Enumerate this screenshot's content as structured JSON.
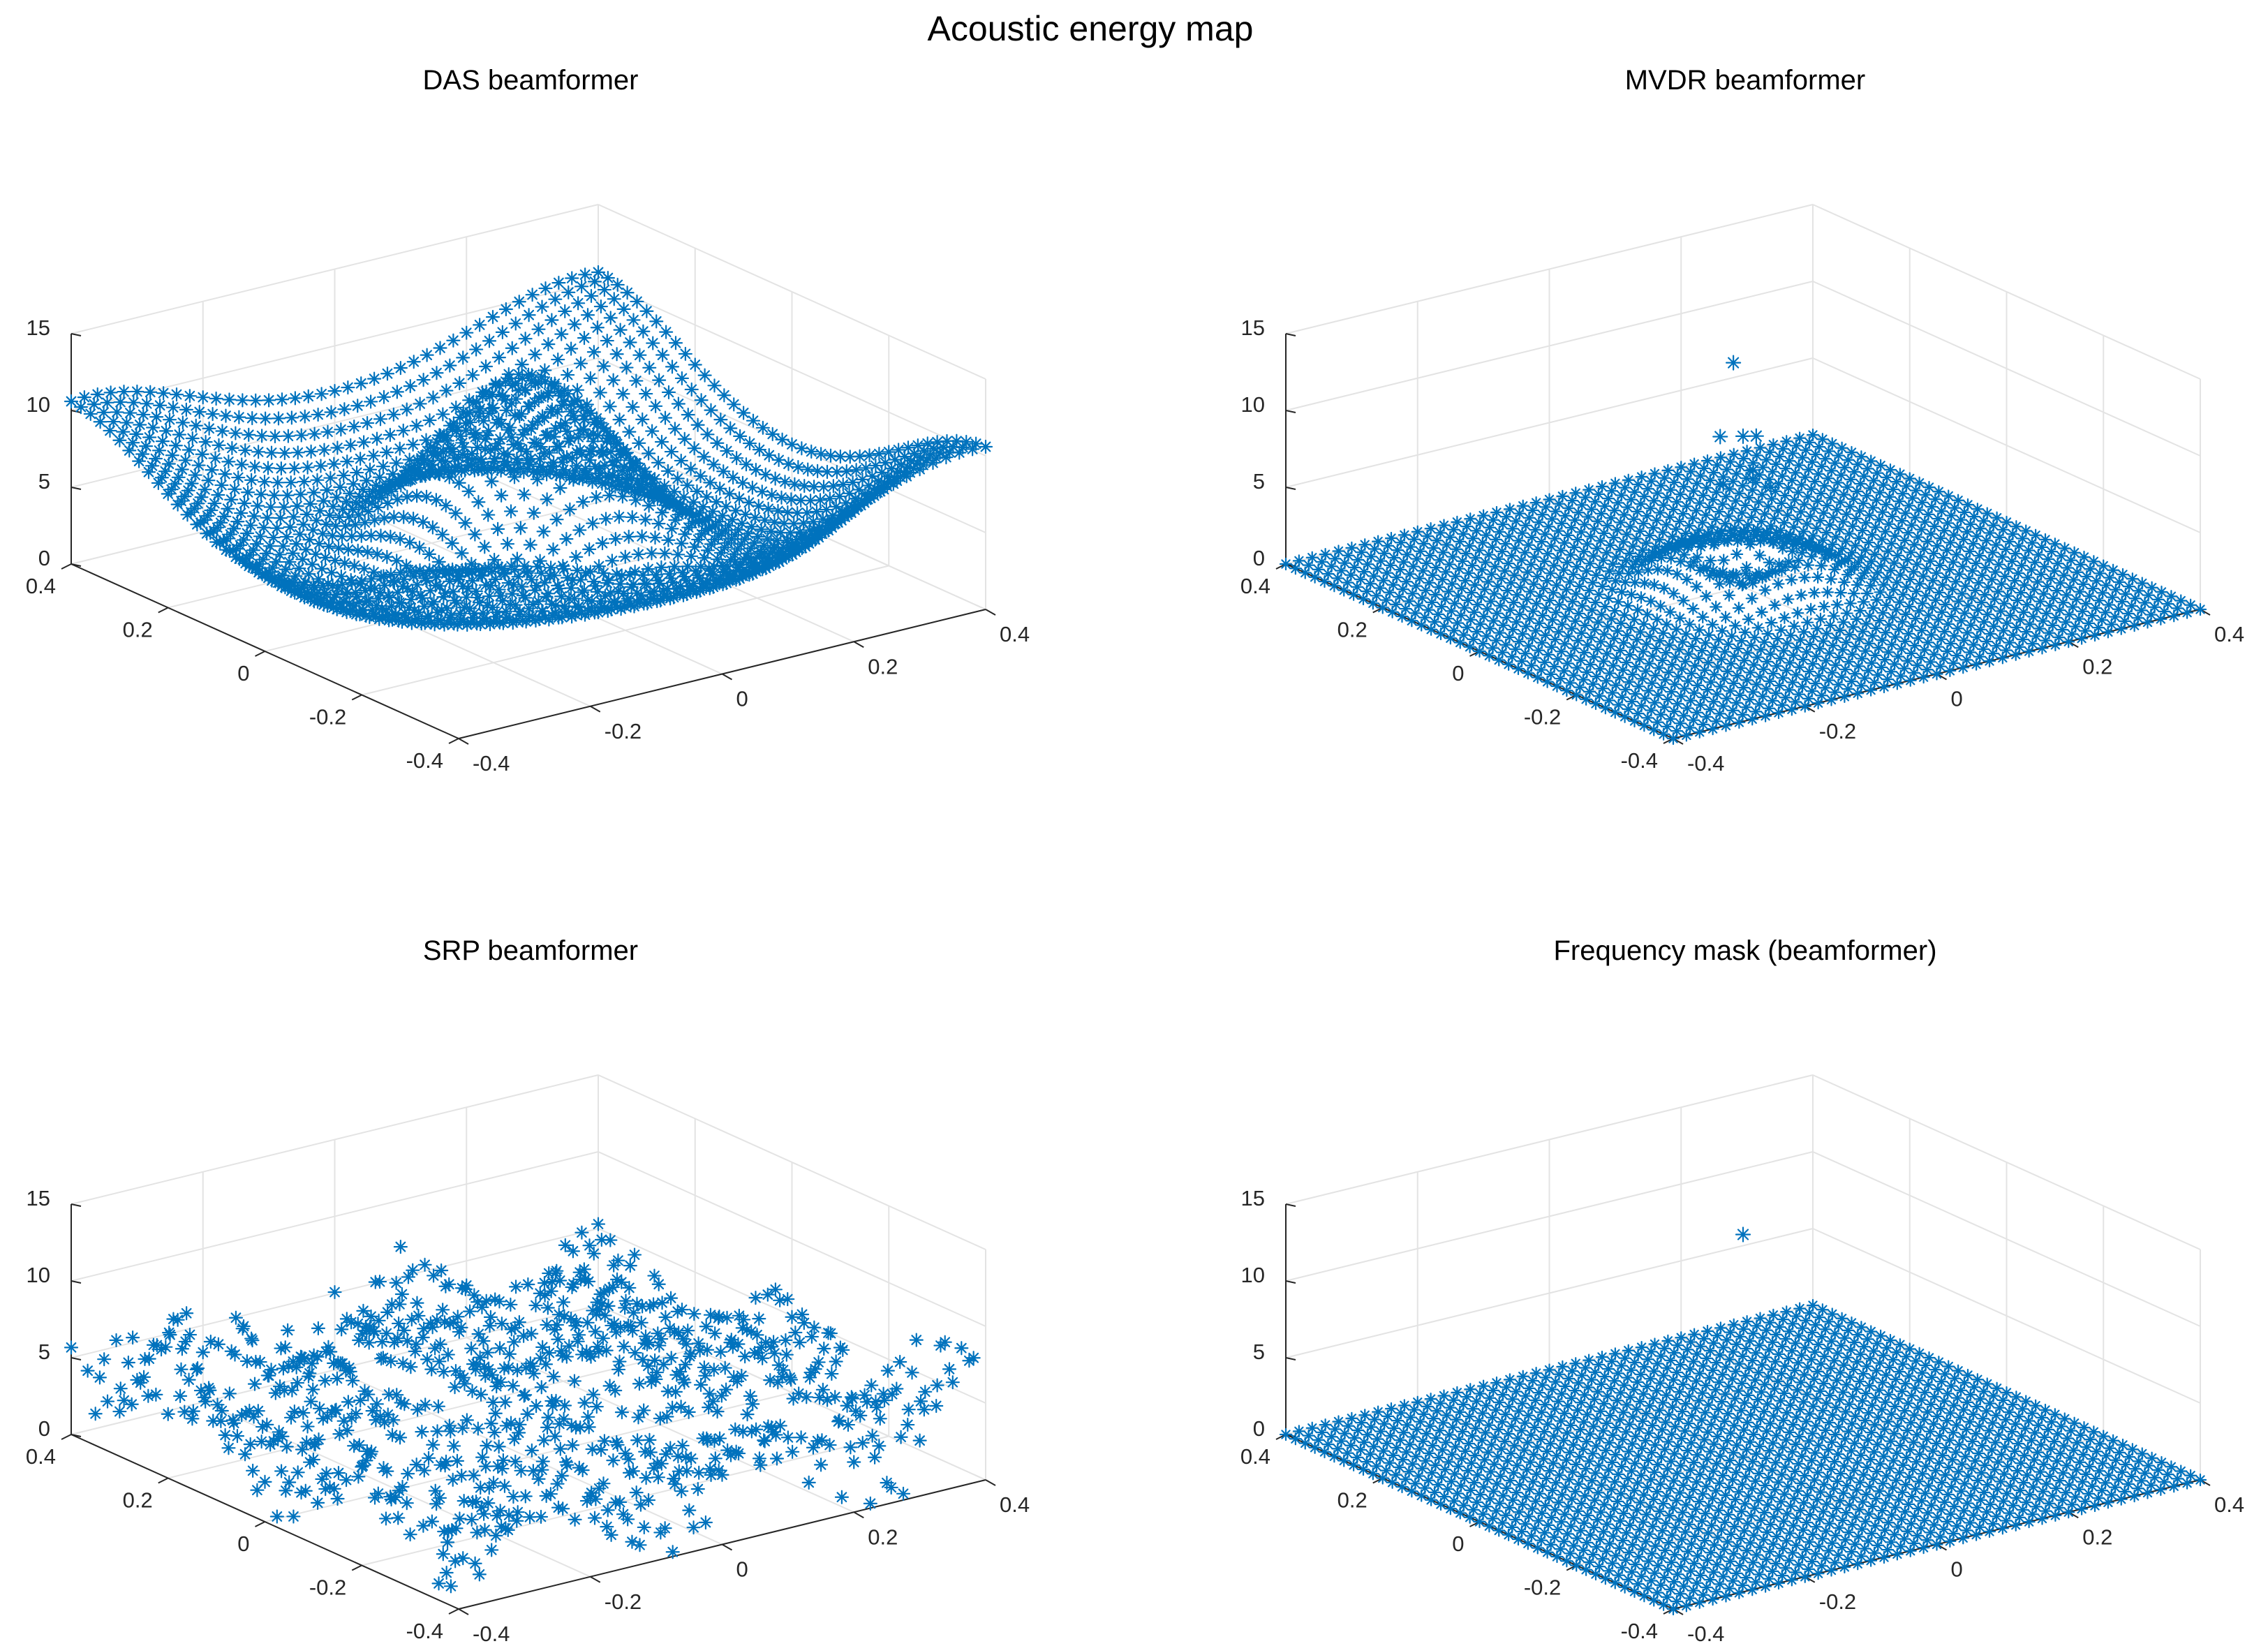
{
  "figure": {
    "title": "Acoustic energy map"
  },
  "colors": {
    "marker": "#0072BD",
    "grid": "#e3e3e3",
    "axis": "#262626",
    "text": "#000000"
  },
  "chart_data": [
    {
      "id": "das",
      "type": "scatter",
      "marker": "asterisk",
      "title": "DAS beamformer",
      "surface": "sinc-like ring with central ridge",
      "x_range": [
        -0.4,
        0.4
      ],
      "y_range": [
        -0.4,
        0.4
      ],
      "zlim": [
        0,
        15
      ],
      "x_ticks": [
        "-0.4",
        "-0.2",
        "0",
        "0.2",
        "0.4"
      ],
      "y_ticks": [
        "-0.4",
        "-0.2",
        "0",
        "0.2",
        "0.4"
      ],
      "z_ticks": [
        "0",
        "5",
        "10",
        "15"
      ],
      "z_peak": 14,
      "z_base": 5,
      "grid_n": 41
    },
    {
      "id": "mvdr",
      "type": "scatter",
      "marker": "asterisk",
      "title": "MVDR beamformer",
      "surface": "flat plane with small ring bump and isolated high outliers",
      "x_range": [
        -0.4,
        0.4
      ],
      "y_range": [
        -0.4,
        0.4
      ],
      "zlim": [
        0,
        15
      ],
      "x_ticks": [
        "-0.4",
        "-0.2",
        "0",
        "0.2",
        "0.4"
      ],
      "y_ticks": [
        "-0.4",
        "-0.2",
        "0",
        "0.2",
        "0.4"
      ],
      "z_ticks": [
        "0",
        "5",
        "10",
        "15"
      ],
      "outliers": [
        {
          "x": 0.0,
          "y": 0.02,
          "z": 14.3
        },
        {
          "x": 0.0,
          "y": 0.0,
          "z": 9.8
        },
        {
          "x": 0.02,
          "y": 0.0,
          "z": 9.6
        },
        {
          "x": -0.02,
          "y": 0.02,
          "z": 9.7
        },
        {
          "x": 0.0,
          "y": -0.02,
          "z": 7.3
        },
        {
          "x": -0.03,
          "y": 0.0,
          "z": 7.0
        },
        {
          "x": 0.03,
          "y": 0.02,
          "z": 7.0
        },
        {
          "x": 0.02,
          "y": -0.03,
          "z": 6.7
        }
      ],
      "grid_n": 41
    },
    {
      "id": "srp",
      "type": "scatter",
      "marker": "asterisk",
      "title": "SRP beamformer",
      "surface": "irregular scattered values with central ridge",
      "x_range": [
        -0.4,
        0.4
      ],
      "y_range": [
        -0.4,
        0.4
      ],
      "zlim": [
        0,
        15
      ],
      "x_ticks": [
        "-0.4",
        "-0.2",
        "0",
        "0.2",
        "0.4"
      ],
      "y_ticks": [
        "-0.4",
        "-0.2",
        "0",
        "0.2",
        "0.4"
      ],
      "z_ticks": [
        "0",
        "5",
        "10",
        "15"
      ],
      "grid_n": 33
    },
    {
      "id": "mask",
      "type": "scatter",
      "marker": "asterisk",
      "title": "Frequency mask (beamformer)",
      "surface": "flat plane at 0 with one outlier",
      "x_range": [
        -0.4,
        0.4
      ],
      "y_range": [
        -0.4,
        0.4
      ],
      "zlim": [
        0,
        15
      ],
      "x_ticks": [
        "-0.4",
        "-0.2",
        "0",
        "0.2",
        "0.4"
      ],
      "y_ticks": [
        "-0.4",
        "-0.2",
        "0",
        "0.2",
        "0.4"
      ],
      "z_ticks": [
        "0",
        "5",
        "10",
        "15"
      ],
      "outliers": [
        {
          "x": 0.0,
          "y": 0.0,
          "z": 14.5
        }
      ],
      "grid_n": 41
    }
  ]
}
